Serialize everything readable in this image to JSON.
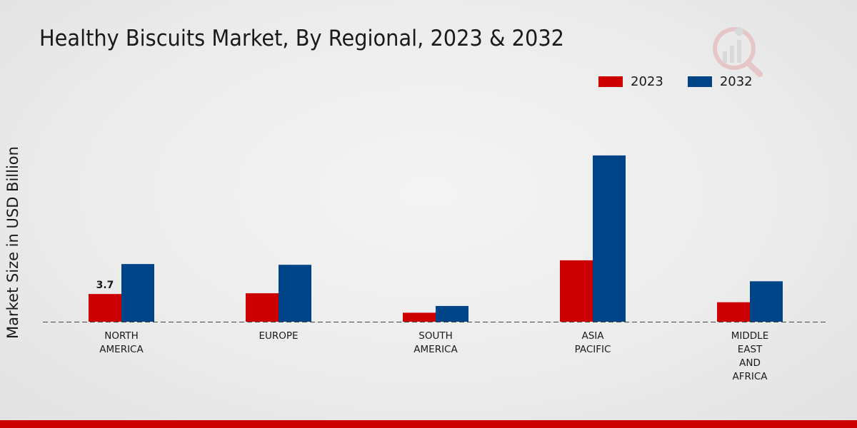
{
  "colors": {
    "s2023": "#cc0000",
    "s2032": "#004488",
    "bottom_bar": "#cc0000"
  },
  "chart_data": {
    "type": "bar",
    "title": "Healthy Biscuits Market, By Regional, 2023 & 2032",
    "xlabel": "",
    "ylabel": "Market Size in USD Billion",
    "ylim": [
      0,
      30
    ],
    "categories": [
      [
        "NORTH",
        "AMERICA"
      ],
      [
        "EUROPE"
      ],
      [
        "SOUTH",
        "AMERICA"
      ],
      [
        "ASIA",
        "PACIFIC"
      ],
      [
        "MIDDLE",
        "EAST",
        "AND",
        "AFRICA"
      ]
    ],
    "series": [
      {
        "name": "2023",
        "values": [
          3.7,
          3.8,
          1.2,
          8.2,
          2.6
        ]
      },
      {
        "name": "2032",
        "values": [
          7.7,
          7.6,
          2.1,
          22.2,
          5.4
        ]
      }
    ],
    "data_labels": [
      {
        "series": 0,
        "index": 0,
        "text": "3.7"
      }
    ],
    "legend_position": "top-right",
    "grid": false
  }
}
